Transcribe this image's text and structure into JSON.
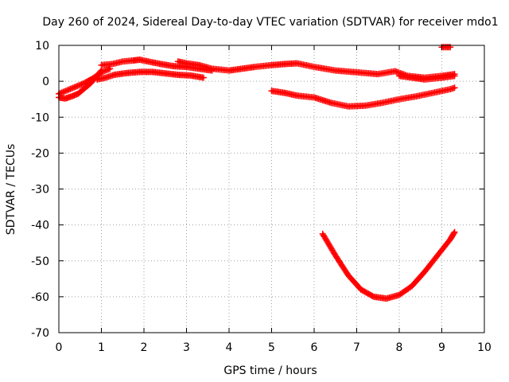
{
  "chart_data": {
    "type": "scatter",
    "title": "Day 260 of 2024, Sidereal Day-to-day VTEC variation (SDTVAR) for receiver mdo1",
    "xlabel": "GPS time / hours",
    "ylabel": "SDTVAR / TECUs",
    "xlim": [
      0,
      10
    ],
    "ylim": [
      -70,
      10
    ],
    "x_ticks": [
      "0",
      "1",
      "2",
      "3",
      "4",
      "5",
      "6",
      "7",
      "8",
      "9",
      "10"
    ],
    "y_ticks": [
      "10",
      "0",
      "-10",
      "-20",
      "-30",
      "-40",
      "-50",
      "-60",
      "-70"
    ],
    "grid": true,
    "marker": "+",
    "color": "#ff0000",
    "series": [
      {
        "x": [
          0.0,
          0.2,
          0.4,
          0.6,
          0.8,
          1.0,
          1.2
        ],
        "y": [
          -3.5,
          -2.5,
          -1.5,
          -0.5,
          0.8,
          2.5,
          3.5
        ]
      },
      {
        "x": [
          0.0,
          0.15,
          0.3,
          0.45,
          0.6,
          0.75,
          0.9,
          1.0
        ],
        "y": [
          -4.5,
          -4.8,
          -4.2,
          -3.5,
          -2.0,
          -0.5,
          1.5,
          3.0
        ]
      },
      {
        "x": [
          1.0,
          1.25,
          1.5,
          1.75,
          1.9,
          2.1,
          2.4,
          2.7,
          3.0,
          3.3,
          3.6
        ],
        "y": [
          4.5,
          4.8,
          5.5,
          5.8,
          6.0,
          5.5,
          4.8,
          4.2,
          4.0,
          3.5,
          3.0
        ]
      },
      {
        "x": [
          0.9,
          1.1,
          1.3,
          1.6,
          1.9,
          2.2,
          2.5,
          2.8,
          3.1,
          3.4
        ],
        "y": [
          0.5,
          1.0,
          1.8,
          2.3,
          2.6,
          2.6,
          2.2,
          1.8,
          1.6,
          1.0
        ]
      },
      {
        "x": [
          2.8,
          3.0,
          3.3,
          3.6,
          4.0,
          4.3,
          4.6,
          5.0,
          5.3,
          5.6,
          6.0,
          6.5,
          7.0,
          7.5,
          7.9,
          8.2,
          8.6,
          9.0,
          9.3
        ],
        "y": [
          5.5,
          5.0,
          4.5,
          3.5,
          3.0,
          3.5,
          4.0,
          4.5,
          4.8,
          5.0,
          4.0,
          3.0,
          2.5,
          2.0,
          2.8,
          1.5,
          1.0,
          1.5,
          2.0
        ]
      },
      {
        "x": [
          8.0,
          8.3,
          8.6,
          9.0,
          9.3
        ],
        "y": [
          1.5,
          1.0,
          0.5,
          1.0,
          1.5
        ]
      },
      {
        "x": [
          9.0,
          9.2
        ],
        "y": [
          9.5,
          9.5
        ]
      },
      {
        "x": [
          5.0,
          5.3,
          5.6,
          6.0,
          6.4,
          6.8,
          7.2,
          7.6,
          8.0,
          8.4,
          8.8,
          9.2,
          9.3
        ],
        "y": [
          -2.7,
          -3.2,
          -4.0,
          -4.5,
          -6.0,
          -7.0,
          -6.8,
          -6.0,
          -5.0,
          -4.2,
          -3.2,
          -2.2,
          -1.8
        ]
      },
      {
        "x": [
          6.2,
          6.5,
          6.8,
          7.1,
          7.4,
          7.7,
          8.0,
          8.3,
          8.6,
          8.9,
          9.2,
          9.3
        ],
        "y": [
          -42.5,
          -48.5,
          -54.0,
          -58.0,
          -60.0,
          -60.5,
          -59.5,
          -57.0,
          -53.0,
          -48.5,
          -44.0,
          -42.0
        ]
      }
    ]
  }
}
